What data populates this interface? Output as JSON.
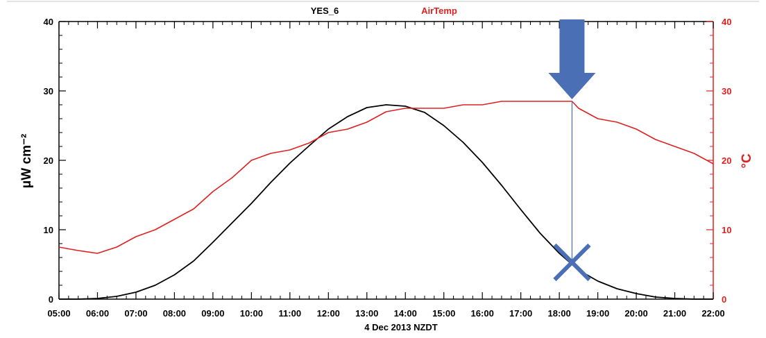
{
  "chart_data": {
    "type": "line",
    "legend": [
      "YES_6",
      "AirTemp"
    ],
    "xlabel": "4 Dec 2013  NZDT",
    "ylabel_left": "μW cm⁻²",
    "ylabel_right": "°C",
    "x_ticks": [
      "05:00",
      "06:00",
      "07:00",
      "08:00",
      "09:00",
      "10:00",
      "11:00",
      "12:00",
      "13:00",
      "14:00",
      "15:00",
      "16:00",
      "17:00",
      "18:00",
      "19:00",
      "20:00",
      "21:00",
      "22:00"
    ],
    "y_left_ticks": [
      "0",
      "10",
      "20",
      "30",
      "40"
    ],
    "y_right_ticks": [
      "0",
      "10",
      "20",
      "30",
      "40"
    ],
    "xlim_hours": [
      5,
      22
    ],
    "ylim_left": [
      0,
      40
    ],
    "ylim_right": [
      0,
      40
    ],
    "colors": {
      "YES_6": "#000000",
      "AirTemp": "#e02020",
      "annotation": "#4a6fb5"
    },
    "series": [
      {
        "name": "YES_6",
        "axis": "left",
        "x_hours": [
          5,
          5.5,
          6,
          6.5,
          7,
          7.5,
          8,
          8.5,
          9,
          9.5,
          10,
          10.5,
          11,
          11.5,
          12,
          12.5,
          13,
          13.5,
          14,
          14.5,
          15,
          15.5,
          16,
          16.5,
          17,
          17.5,
          18,
          18.33,
          18.5,
          19,
          19.5,
          20,
          20.5,
          21,
          21.5,
          22
        ],
        "values": [
          0,
          0,
          0.1,
          0.4,
          1,
          2,
          3.5,
          5.5,
          8.2,
          11,
          13.8,
          16.8,
          19.6,
          22.1,
          24.5,
          26.3,
          27.6,
          28,
          27.8,
          26.9,
          25,
          22.6,
          19.7,
          16.4,
          12.9,
          9.5,
          6.6,
          5,
          4.2,
          2.6,
          1.5,
          0.8,
          0.3,
          0.1,
          0,
          0
        ]
      },
      {
        "name": "AirTemp",
        "axis": "right",
        "x_hours": [
          5,
          5.5,
          6,
          6.5,
          7,
          7.5,
          8,
          8.5,
          9,
          9.5,
          10,
          10.5,
          11,
          11.5,
          12,
          12.5,
          13,
          13.5,
          14,
          14.5,
          15,
          15.5,
          16,
          16.5,
          17,
          17.5,
          18,
          18.33,
          18.5,
          19,
          19.5,
          20,
          20.5,
          21,
          21.5,
          22
        ],
        "values": [
          7.5,
          7,
          6.6,
          7.5,
          9,
          10,
          11.5,
          13,
          15.5,
          17.5,
          20,
          21,
          21.5,
          22.5,
          24,
          24.5,
          25.5,
          27,
          27.5,
          27.5,
          27.5,
          28,
          28,
          28.5,
          28.5,
          28.5,
          28.5,
          28.5,
          27.5,
          26,
          25.5,
          24.5,
          23,
          22,
          21,
          19.5
        ]
      }
    ],
    "annotations": [
      {
        "type": "arrow-down",
        "x_hour": 18.33
      },
      {
        "type": "vertical-line",
        "x_hour": 18.33
      },
      {
        "type": "cross",
        "x_hour": 18.33,
        "y_left": 5.3
      }
    ]
  }
}
